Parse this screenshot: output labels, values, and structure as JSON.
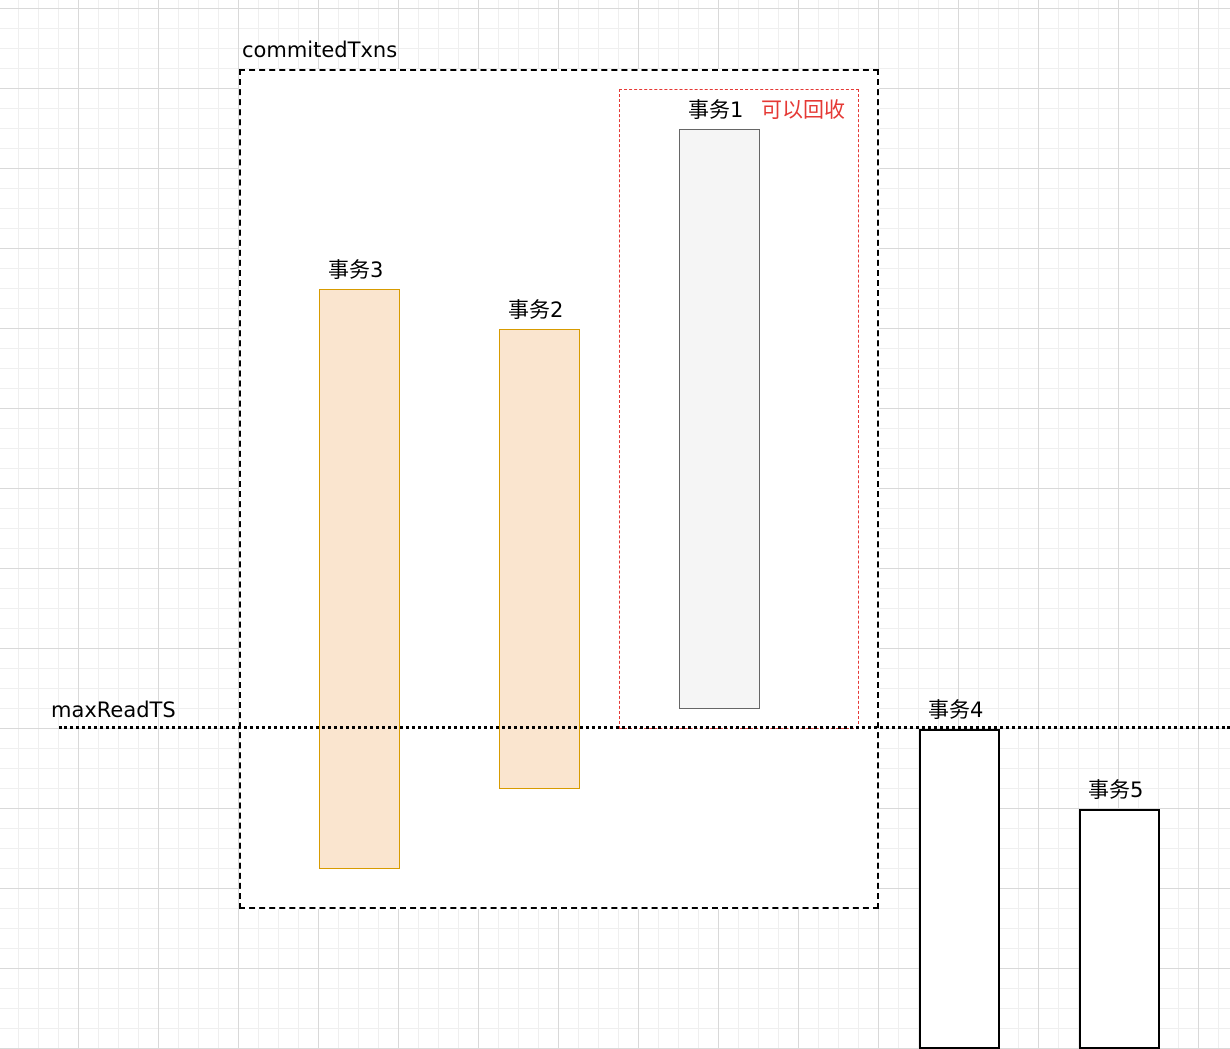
{
  "committed_txns": {
    "label": "commitedTxns"
  },
  "max_read_ts": {
    "label": "maxReadTS"
  },
  "reclaimable": {
    "label": "可以回收",
    "color": "#e53935"
  },
  "transactions": [
    {
      "label": "事务1",
      "style": "gray"
    },
    {
      "label": "事务2",
      "style": "orange"
    },
    {
      "label": "事务3",
      "style": "orange"
    },
    {
      "label": "事务4",
      "style": "white"
    },
    {
      "label": "事务5",
      "style": "white"
    }
  ],
  "colors": {
    "orange_fill": "#fae5cf",
    "orange_stroke": "#d79b00",
    "gray_fill": "#f5f5f5",
    "gray_stroke": "#666666"
  }
}
